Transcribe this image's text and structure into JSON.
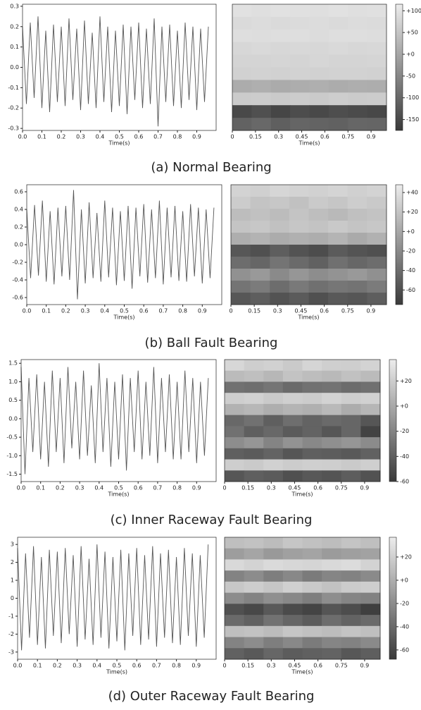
{
  "captions": [
    "(a) Normal Bearing",
    "(b) Ball Fault Bearing",
    "(c) Inner Raceway Fault Bearing",
    "(d) Outer Raceway Fault Bearing"
  ],
  "chart_data": [
    {
      "type": "line",
      "xlabel": "Time(s)",
      "color": "#555555",
      "x": [
        0,
        0.02,
        0.04,
        0.06,
        0.08,
        0.1,
        0.12,
        0.14,
        0.16,
        0.18,
        0.2,
        0.22,
        0.24,
        0.26,
        0.28,
        0.3,
        0.32,
        0.34,
        0.36,
        0.38,
        0.4,
        0.42,
        0.44,
        0.46,
        0.48,
        0.5,
        0.52,
        0.54,
        0.56,
        0.58,
        0.6,
        0.62,
        0.64,
        0.66,
        0.68,
        0.7,
        0.72,
        0.74,
        0.76,
        0.78,
        0.8,
        0.82,
        0.84,
        0.86,
        0.88,
        0.9,
        0.92,
        0.94,
        0.96
      ],
      "values": [
        0.2,
        -0.18,
        0.22,
        -0.15,
        0.25,
        -0.2,
        0.18,
        -0.22,
        0.21,
        -0.17,
        0.2,
        -0.19,
        0.24,
        -0.16,
        0.19,
        -0.21,
        0.23,
        -0.18,
        0.17,
        -0.2,
        0.25,
        -0.17,
        0.2,
        -0.22,
        0.18,
        -0.19,
        0.21,
        -0.23,
        0.2,
        -0.16,
        0.22,
        -0.2,
        0.19,
        -0.18,
        0.24,
        -0.29,
        0.2,
        -0.17,
        0.21,
        -0.19,
        0.18,
        -0.2,
        0.22,
        -0.16,
        0.2,
        -0.21,
        0.19,
        -0.17,
        0.2
      ],
      "xlim": [
        0,
        1.0
      ],
      "xticks": [
        {
          "value": 0,
          "label": "0.0"
        },
        0.1,
        0.2,
        0.3,
        0.4,
        0.5,
        0.6,
        0.7,
        0.8,
        0.9
      ],
      "ylim": [
        -0.31,
        0.31
      ],
      "yticks": [
        0.3,
        0.2,
        0.1,
        {
          "value": 0,
          "label": "0.0"
        },
        -0.1,
        -0.2,
        -0.3
      ]
    },
    {
      "type": "heatmap",
      "xlabel": "Time(s)",
      "colormap": [
        "#3a3a3a",
        "#ededed"
      ],
      "xlim": [
        0,
        1.0
      ],
      "xticks": [
        0,
        0.15,
        0.3,
        0.45,
        0.6,
        0.75,
        0.9
      ],
      "z": [
        [
          95,
          92,
          96,
          94,
          93,
          95,
          92,
          94
        ],
        [
          85,
          88,
          84,
          86,
          87,
          85,
          88,
          86
        ],
        [
          90,
          89,
          91,
          90,
          88,
          90,
          91,
          89
        ],
        [
          80,
          82,
          79,
          81,
          80,
          82,
          80,
          81
        ],
        [
          75,
          74,
          76,
          75,
          77,
          74,
          75,
          76
        ],
        [
          70,
          72,
          69,
          71,
          70,
          72,
          71,
          70
        ],
        [
          10,
          15,
          8,
          12,
          14,
          9,
          13,
          11
        ],
        [
          60,
          62,
          58,
          61,
          59,
          63,
          60,
          62
        ],
        [
          -150,
          -140,
          -155,
          -145,
          -150,
          -142,
          -148,
          -152
        ],
        [
          -110,
          -100,
          -115,
          -105,
          -108,
          -112,
          -104,
          -106
        ]
      ],
      "clim": [
        -175,
        115
      ],
      "cticks": [
        {
          "value": 100,
          "label": "+100"
        },
        {
          "value": 50,
          "label": "+50"
        },
        {
          "value": 0,
          "label": "+0"
        },
        -50,
        -100,
        -150
      ]
    },
    {
      "type": "line",
      "xlabel": "Time(s)",
      "color": "#555555",
      "x": [
        0,
        0.02,
        0.04,
        0.06,
        0.08,
        0.1,
        0.12,
        0.14,
        0.16,
        0.18,
        0.2,
        0.22,
        0.24,
        0.26,
        0.28,
        0.3,
        0.32,
        0.34,
        0.36,
        0.38,
        0.4,
        0.42,
        0.44,
        0.46,
        0.48,
        0.5,
        0.52,
        0.54,
        0.56,
        0.58,
        0.6,
        0.62,
        0.64,
        0.66,
        0.68,
        0.7,
        0.72,
        0.74,
        0.76,
        0.78,
        0.8,
        0.82,
        0.84,
        0.86,
        0.88,
        0.9,
        0.92,
        0.94,
        0.96
      ],
      "values": [
        0.4,
        -0.38,
        0.45,
        -0.35,
        0.5,
        -0.42,
        0.38,
        -0.45,
        0.42,
        -0.36,
        0.44,
        -0.4,
        0.62,
        -0.62,
        0.4,
        -0.44,
        0.48,
        -0.38,
        0.36,
        -0.42,
        0.5,
        -0.37,
        0.42,
        -0.46,
        0.38,
        -0.41,
        0.44,
        -0.5,
        0.42,
        -0.36,
        0.46,
        -0.43,
        0.4,
        -0.38,
        0.5,
        -0.45,
        0.42,
        -0.37,
        0.44,
        -0.41,
        0.38,
        -0.42,
        0.46,
        -0.36,
        0.42,
        -0.44,
        0.4,
        -0.38,
        0.42
      ],
      "xlim": [
        0,
        1.0
      ],
      "xticks": [
        {
          "value": 0,
          "label": "0.0"
        },
        0.1,
        0.2,
        0.3,
        0.4,
        0.5,
        0.6,
        0.7,
        0.8,
        0.9
      ],
      "ylim": [
        -0.68,
        0.68
      ],
      "yticks": [
        0.6,
        0.4,
        0.2,
        {
          "value": 0,
          "label": "0.0"
        },
        -0.2,
        -0.4,
        -0.6
      ]
    },
    {
      "type": "heatmap",
      "xlabel": "Time(s)",
      "colormap": [
        "#3a3a3a",
        "#ededed"
      ],
      "xlim": [
        0,
        1.0
      ],
      "xticks": [
        0,
        0.15,
        0.3,
        0.45,
        0.6,
        0.75,
        0.9
      ],
      "z": [
        [
          30,
          28,
          32,
          30,
          29,
          31,
          28,
          30
        ],
        [
          25,
          20,
          22,
          18,
          24,
          21,
          26,
          23
        ],
        [
          15,
          18,
          14,
          20,
          16,
          12,
          17,
          19
        ],
        [
          20,
          22,
          18,
          21,
          19,
          23,
          20,
          22
        ],
        [
          5,
          8,
          3,
          6,
          4,
          9,
          2,
          7
        ],
        [
          -55,
          -60,
          -50,
          -58,
          -62,
          -52,
          -57,
          -60
        ],
        [
          -40,
          -45,
          -35,
          -42,
          -48,
          -38,
          -44,
          -40
        ],
        [
          -15,
          -10,
          -20,
          -12,
          -18,
          -14,
          -10,
          -16
        ],
        [
          -35,
          -30,
          -40,
          -32,
          -38,
          -34,
          -36,
          -30
        ],
        [
          -55,
          -50,
          -58,
          -52,
          -60,
          -54,
          -56,
          -50
        ]
      ],
      "clim": [
        -75,
        48
      ],
      "cticks": [
        {
          "value": 40,
          "label": "+40"
        },
        {
          "value": 20,
          "label": "+20"
        },
        {
          "value": 0,
          "label": "+0"
        },
        -20,
        -40,
        -60
      ]
    },
    {
      "type": "line",
      "xlabel": "Time(s)",
      "color": "#555555",
      "x": [
        0,
        0.02,
        0.04,
        0.06,
        0.08,
        0.1,
        0.12,
        0.14,
        0.16,
        0.18,
        0.2,
        0.22,
        0.24,
        0.26,
        0.28,
        0.3,
        0.32,
        0.34,
        0.36,
        0.38,
        0.4,
        0.42,
        0.44,
        0.46,
        0.48,
        0.5,
        0.52,
        0.54,
        0.56,
        0.58,
        0.6,
        0.62,
        0.64,
        0.66,
        0.68,
        0.7,
        0.72,
        0.74,
        0.76,
        0.78,
        0.8,
        0.82,
        0.84,
        0.86,
        0.88,
        0.9,
        0.92,
        0.94,
        0.96
      ],
      "values": [
        1.4,
        -1.5,
        1.1,
        -0.9,
        1.2,
        -1.1,
        1.0,
        -1.3,
        1.3,
        -0.9,
        1.1,
        -1.2,
        1.4,
        -0.8,
        1.0,
        -1.1,
        1.3,
        -1.0,
        0.9,
        -1.2,
        1.5,
        -0.9,
        1.1,
        -1.3,
        1.0,
        -1.1,
        1.2,
        -1.4,
        1.1,
        -0.9,
        1.3,
        -1.1,
        1.0,
        -1.0,
        1.4,
        -1.2,
        1.1,
        -0.9,
        1.2,
        -1.1,
        1.0,
        -1.1,
        1.3,
        -0.9,
        1.1,
        -1.2,
        1.0,
        -1.0,
        1.1
      ],
      "xlim": [
        0,
        1.0
      ],
      "xticks": [
        {
          "value": 0,
          "label": "0.0"
        },
        0.1,
        0.2,
        0.3,
        0.4,
        0.5,
        0.6,
        0.7,
        0.8,
        0.9
      ],
      "ylim": [
        -1.7,
        1.6
      ],
      "yticks": [
        1.5,
        {
          "value": 1,
          "label": "1.0"
        },
        0.5,
        {
          "value": 0,
          "label": "0.0"
        },
        -0.5,
        {
          "value": -1,
          "label": "-1.0"
        },
        -1.5
      ]
    },
    {
      "type": "heatmap",
      "xlabel": "Time(s)",
      "colormap": [
        "#3a3a3a",
        "#ededed"
      ],
      "xlim": [
        0,
        1.0
      ],
      "xticks": [
        0,
        0.15,
        0.3,
        0.45,
        0.6,
        0.75,
        0.9
      ],
      "z": [
        [
          25,
          20,
          22,
          18,
          24,
          21,
          20,
          23
        ],
        [
          10,
          12,
          8,
          14,
          11,
          9,
          13,
          10
        ],
        [
          -30,
          -32,
          -28,
          -34,
          -30,
          -29,
          -33,
          -31
        ],
        [
          20,
          22,
          18,
          21,
          19,
          23,
          20,
          22
        ],
        [
          5,
          8,
          3,
          6,
          4,
          9,
          2,
          7
        ],
        [
          -35,
          -30,
          -40,
          -32,
          -38,
          -34,
          -36,
          -45
        ],
        [
          -30,
          -40,
          -35,
          -42,
          -38,
          -45,
          -36,
          -55
        ],
        [
          -15,
          -10,
          -20,
          -12,
          -18,
          -14,
          -10,
          -16
        ],
        [
          -40,
          -42,
          -38,
          -45,
          -40,
          -41,
          -43,
          -39
        ],
        [
          20,
          18,
          22,
          19,
          21,
          20,
          18,
          21
        ],
        [
          -45,
          -40,
          -42,
          -48,
          -44,
          -46,
          -41,
          -47
        ]
      ],
      "clim": [
        -60,
        37
      ],
      "cticks": [
        {
          "value": 20,
          "label": "+20"
        },
        {
          "value": 0,
          "label": "+0"
        },
        -20,
        -40,
        -60
      ]
    },
    {
      "type": "line",
      "xlabel": "Time(s)",
      "color": "#555555",
      "x": [
        0,
        0.02,
        0.04,
        0.06,
        0.08,
        0.1,
        0.12,
        0.14,
        0.16,
        0.18,
        0.2,
        0.22,
        0.24,
        0.26,
        0.28,
        0.3,
        0.32,
        0.34,
        0.36,
        0.38,
        0.4,
        0.42,
        0.44,
        0.46,
        0.48,
        0.5,
        0.52,
        0.54,
        0.56,
        0.58,
        0.6,
        0.62,
        0.64,
        0.66,
        0.68,
        0.7,
        0.72,
        0.74,
        0.76,
        0.78,
        0.8,
        0.82,
        0.84,
        0.86,
        0.88,
        0.9,
        0.92,
        0.94,
        0.96
      ],
      "values": [
        2.8,
        -2.9,
        2.5,
        -2.2,
        2.9,
        -2.6,
        2.3,
        -2.8,
        2.7,
        -2.1,
        2.6,
        -2.5,
        2.8,
        -2.0,
        2.4,
        -2.7,
        2.9,
        -2.3,
        2.2,
        -2.6,
        3.0,
        -2.2,
        2.6,
        -2.8,
        2.3,
        -2.4,
        2.7,
        -2.9,
        2.5,
        -2.1,
        2.8,
        -2.6,
        2.4,
        -2.3,
        2.9,
        -2.7,
        2.5,
        -2.2,
        2.7,
        -2.5,
        2.3,
        -2.6,
        2.8,
        -2.1,
        2.5,
        -2.7,
        2.4,
        -2.2,
        3.0
      ],
      "xlim": [
        0,
        1.0
      ],
      "xticks": [
        {
          "value": 0,
          "label": "0.0"
        },
        0.1,
        0.2,
        0.3,
        0.4,
        0.5,
        0.6,
        0.7,
        0.8,
        0.9
      ],
      "ylim": [
        -3.4,
        3.4
      ],
      "yticks": [
        3,
        2,
        1,
        0,
        -1,
        -2,
        -3
      ]
    },
    {
      "type": "heatmap",
      "xlabel": "Time(s)",
      "colormap": [
        "#3a3a3a",
        "#ededed"
      ],
      "xlim": [
        0,
        1.0
      ],
      "xticks": [
        0,
        0.15,
        0.3,
        0.45,
        0.6,
        0.75,
        0.9
      ],
      "z": [
        [
          10,
          12,
          8,
          14,
          11,
          9,
          13,
          10
        ],
        [
          -10,
          -5,
          -12,
          -8,
          -6,
          -11,
          -9,
          -7
        ],
        [
          25,
          22,
          26,
          24,
          23,
          25,
          27,
          22
        ],
        [
          -25,
          -20,
          -28,
          -22,
          -30,
          -24,
          -26,
          -21
        ],
        [
          15,
          18,
          14,
          20,
          16,
          12,
          17,
          19
        ],
        [
          -20,
          -25,
          -18,
          -22,
          -28,
          -19,
          -24,
          -26
        ],
        [
          -55,
          -60,
          -50,
          -58,
          -62,
          -52,
          -57,
          -65
        ],
        [
          -40,
          -45,
          -35,
          -42,
          -48,
          -38,
          -44,
          -40
        ],
        [
          10,
          12,
          8,
          14,
          11,
          9,
          13,
          10
        ],
        [
          -25,
          -20,
          -28,
          -22,
          -30,
          -24,
          -26,
          -21
        ],
        [
          -45,
          -50,
          -42,
          -48,
          -46,
          -44,
          -51,
          -47
        ]
      ],
      "clim": [
        -68,
        37
      ],
      "cticks": [
        {
          "value": 20,
          "label": "+20"
        },
        {
          "value": 0,
          "label": "+0"
        },
        -20,
        -40,
        -60
      ]
    }
  ]
}
